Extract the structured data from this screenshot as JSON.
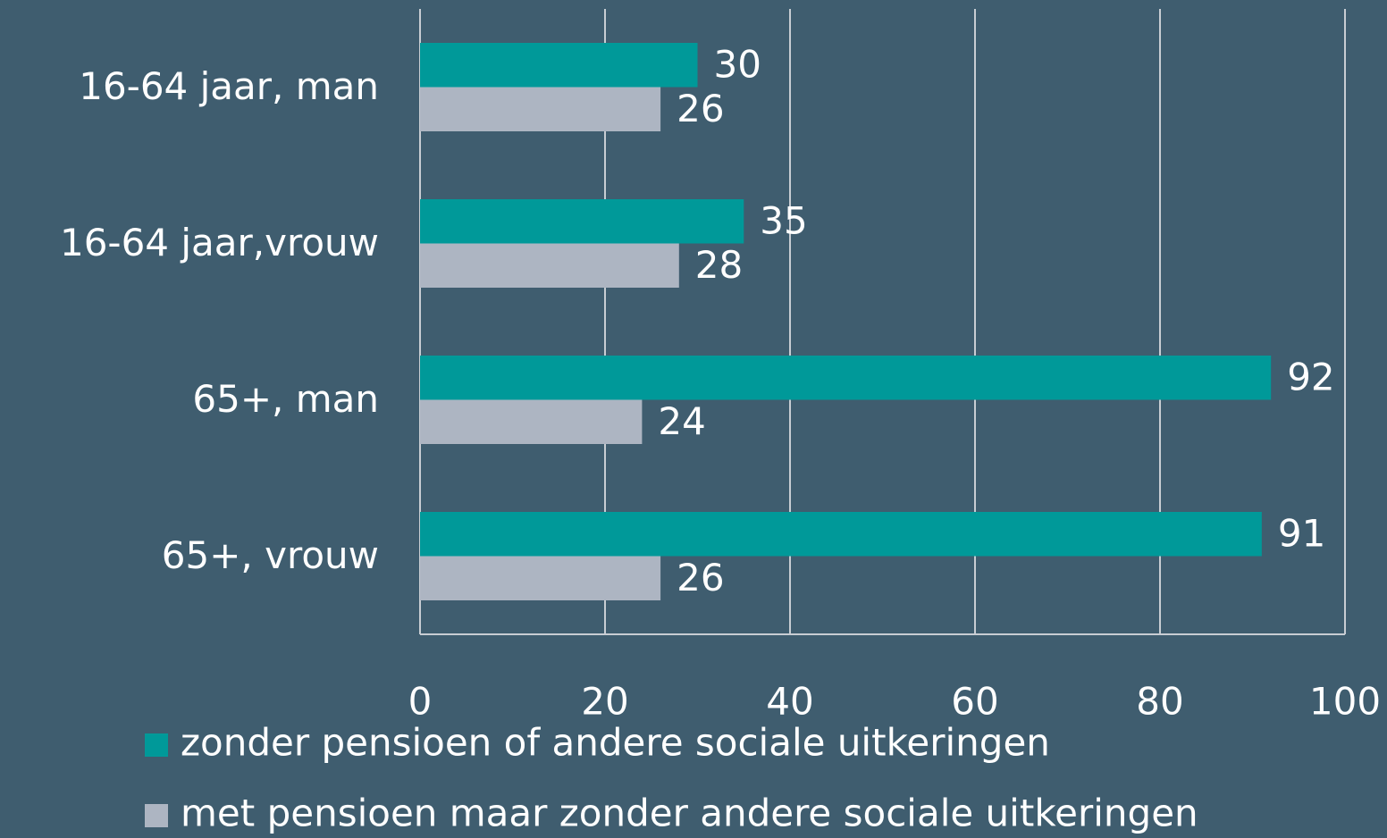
{
  "chart_data": {
    "type": "bar",
    "orientation": "horizontal",
    "categories": [
      "16-64 jaar, man",
      "16-64 jaar,vrouw",
      "65+, man",
      "65+, vrouw"
    ],
    "series": [
      {
        "name": "zonder pensioen of andere sociale uitkeringen",
        "color": "#009999",
        "values": [
          30,
          35,
          92,
          91
        ]
      },
      {
        "name": "met pensioen maar zonder andere sociale uitkeringen",
        "color": "#adb5c2",
        "values": [
          26,
          28,
          24,
          26
        ]
      }
    ],
    "xlim": [
      0,
      100
    ],
    "xticks": [
      0,
      20,
      40,
      60,
      80,
      100
    ],
    "grid": true,
    "legend": "bottom"
  }
}
